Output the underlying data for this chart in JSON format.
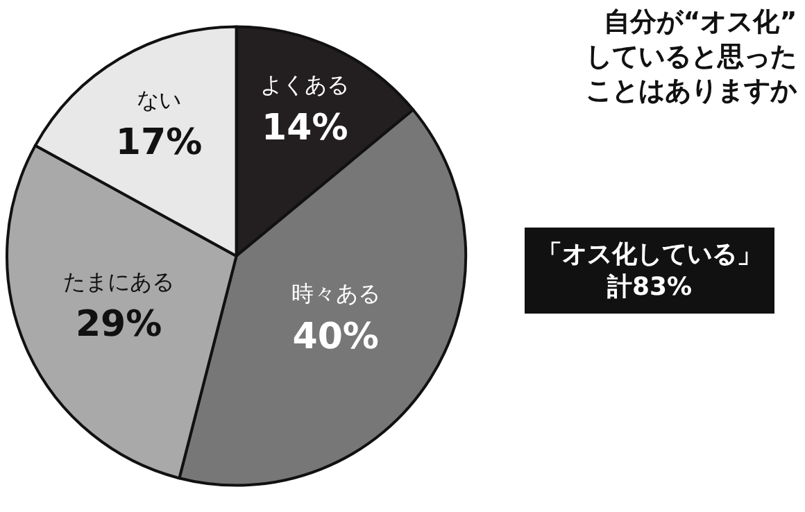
{
  "chart_data": {
    "type": "pie",
    "title": "自分が“オス化”していると思ったことはありますか",
    "categories": [
      "よくある",
      "時々ある",
      "たまにある",
      "ない"
    ],
    "values": [
      14,
      40,
      29,
      17
    ],
    "value_labels": [
      "14%",
      "40%",
      "29%",
      "17%"
    ],
    "colors": [
      "#231f20",
      "#777777",
      "#a9a9a9",
      "#e8e8e8"
    ],
    "annotations": [
      "「オス化している」計83%"
    ],
    "legend": false
  }
}
